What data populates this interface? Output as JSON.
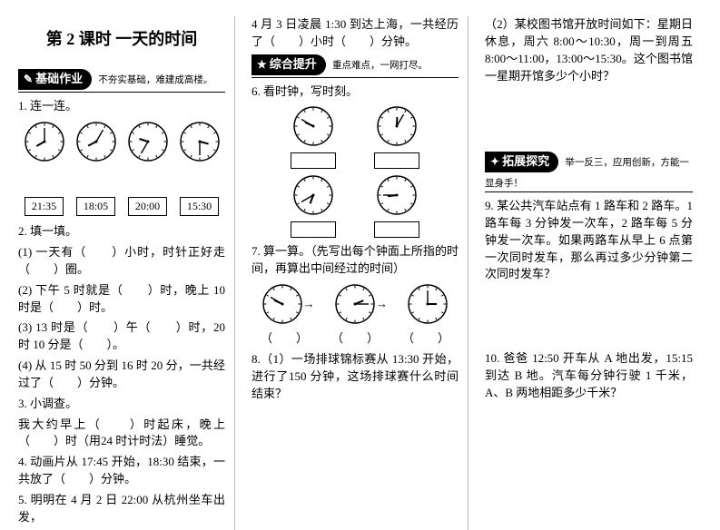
{
  "title": "第 2 课时  一天的时间",
  "sections": {
    "basic": {
      "label": "基础作业",
      "sub": "不夯实基础，难建成高楼。"
    },
    "comp": {
      "label": "综合提升",
      "sub": "重点难点，一网打尽。"
    },
    "ext": {
      "label": "拓展探究",
      "sub": "举一反三，应用创新，方能一显身手！"
    }
  },
  "col1": {
    "q1": "1. 连一连。",
    "clocks1": [
      {
        "h": 8,
        "m": 0
      },
      {
        "h": 8,
        "m": 5
      },
      {
        "h": 9,
        "m": 35
      },
      {
        "h": 3,
        "m": 30
      }
    ],
    "times": [
      "21:35",
      "18:05",
      "20:00",
      "15:30"
    ],
    "q2": "2. 填一填。",
    "q2a": "(1) 一天有（　　）小时，时针正好走（　　）圈。",
    "q2b": "(2) 下午 5 时就是（　　）时，晚上 10 时是（　　）时。",
    "q2c": "(3) 13 时是（　　）午（　　）时，20 时 10 分是（　　）。",
    "q2d": "(4) 从 15 时 50 分到 16 时 20 分，一共经过了（　　）分钟。",
    "q3": "3. 小调查。",
    "q3a": "我大约早上（　　）时起床，晚上（　　）时（用24 时计时法）睡觉。",
    "q4": "4. 动画片从 17:45 开始，18:30 结束，一共放了（　　）分钟。",
    "q5": "5. 明明在 4 月 2 日 22:00 从杭州坐车出发，"
  },
  "col2": {
    "cont": "4 月 3 日凌晨 1:30 到达上海，一共经历了（　　）小时（　　）分钟。",
    "q6": "6. 看时钟，写时刻。",
    "clocks6a": [
      {
        "h": 9,
        "m": 50
      },
      {
        "h": 12,
        "m": 5
      }
    ],
    "clocks6b": [
      {
        "h": 6,
        "m": 40
      },
      {
        "h": 8,
        "m": 45
      }
    ],
    "q7": "7. 算一算。（先写出每个钟面上所指的时间，再算出中间经过的时间）",
    "clocks7": [
      {
        "h": 9,
        "m": 50
      },
      {
        "h": 2,
        "m": 15
      },
      {
        "h": 3,
        "m": 0
      }
    ],
    "q7b": "（　　）　　　（　　）　　　（　　）",
    "q8": "8.（1）一场排球锦标赛从 13:30 开始，进行了150 分钟，这场排球赛什么时间结束？"
  },
  "col3": {
    "q8b": "（2）某校图书馆开放时间如下：星期日休息，周六 8:00～10:30，周一到周五 8:00～11:00，13:00～15:30。这个图书馆一星期开馆多少个小时？",
    "q9": "9. 某公共汽车站点有 1 路车和 2 路车。1 路车每 3 分钟发一次车，2 路车每 5 分钟发一次车。如果两路车从早上 6 点第一次同时发车，那么再过多少分钟第二次同时发车？",
    "q10": "10. 爸爸 12:50 开车从 A 地出发，15:15 到达 B 地。汽车每分钟行驶 1 千米，A、B 两地相距多少千米？"
  },
  "style": {
    "clock_radius": 21,
    "clock_stroke": "#000",
    "clock_fill": "#fff",
    "hour_len": 10,
    "min_len": 15,
    "hand_width": 1.4,
    "tick_len": 2.5
  }
}
